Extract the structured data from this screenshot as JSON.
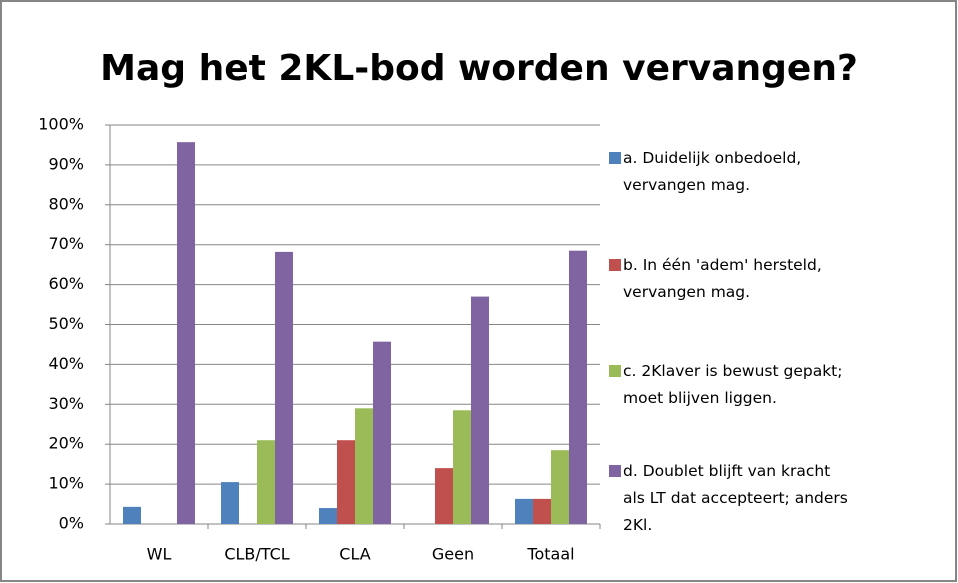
{
  "chart_data": {
    "type": "bar",
    "title": "Mag het 2KL-bod worden vervangen?",
    "categories": [
      "WL",
      "CLB/TCL",
      "CLA",
      "Geen",
      "Totaal"
    ],
    "series": [
      {
        "name": "a. Duidelijk onbedoeld,\nvervangen mag.",
        "color": "#4f81bd",
        "values": [
          4.3,
          10.5,
          4,
          0,
          6.3
        ]
      },
      {
        "name": "b. In één 'adem' hersteld,\nvervangen mag.",
        "color": "#c0504d",
        "values": [
          0,
          0,
          21,
          14,
          6.3
        ]
      },
      {
        "name": "c. 2Klaver is bewust gepakt;\nmoet blijven liggen.",
        "color": "#9bbb59",
        "values": [
          0,
          21,
          29,
          28.5,
          18.5
        ]
      },
      {
        "name": "d. Doublet blijft van kracht\nals LT dat accepteert; anders\n2Kl.",
        "color": "#8064a2",
        "values": [
          95.7,
          68.2,
          45.7,
          57,
          68.5
        ]
      }
    ],
    "ylim": [
      0,
      100
    ],
    "yticks": [
      {
        "value": 0,
        "label": "0%"
      },
      {
        "value": 10,
        "label": "10%"
      },
      {
        "value": 20,
        "label": "20%"
      },
      {
        "value": 30,
        "label": "30%"
      },
      {
        "value": 40,
        "label": "40%"
      },
      {
        "value": 50,
        "label": "50%"
      },
      {
        "value": 60,
        "label": "60%"
      },
      {
        "value": 70,
        "label": "70%"
      },
      {
        "value": 80,
        "label": "80%"
      },
      {
        "value": 90,
        "label": "90%"
      },
      {
        "value": 100,
        "label": "100%"
      }
    ],
    "grid": true,
    "legend": "right"
  }
}
